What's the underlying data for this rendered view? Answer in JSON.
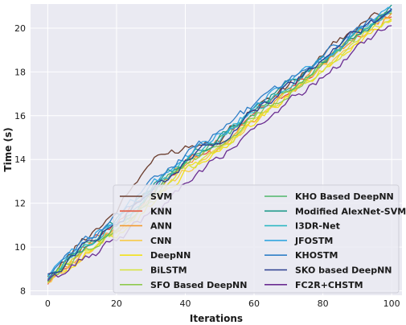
{
  "chart_data": {
    "type": "line",
    "title": "",
    "xlabel": "Iterations",
    "ylabel": "Time (s)",
    "xlim": [
      -5,
      103
    ],
    "ylim": [
      7.8,
      21.1
    ],
    "x_ticks": [
      0,
      20,
      40,
      60,
      80,
      100
    ],
    "y_ticks": [
      8,
      10,
      12,
      14,
      16,
      18,
      20
    ],
    "grid": true,
    "background": "#eaeaf2",
    "legend_placement": "bottom-right",
    "legend_columns": 2,
    "series": [
      {
        "name": "SVM",
        "color": "#6b3d2e",
        "points": [
          [
            0,
            8.5
          ],
          [
            10,
            10.3
          ],
          [
            20,
            11.7
          ],
          [
            30,
            13.9
          ],
          [
            40,
            14.6
          ],
          [
            50,
            15.0
          ],
          [
            60,
            16.4
          ],
          [
            70,
            17.3
          ],
          [
            80,
            18.8
          ],
          [
            90,
            20.0
          ],
          [
            100,
            20.9
          ]
        ]
      },
      {
        "name": "KNN",
        "color": "#e8553a",
        "points": [
          [
            0,
            8.45
          ],
          [
            10,
            9.9
          ],
          [
            20,
            11.0
          ],
          [
            30,
            12.6
          ],
          [
            40,
            13.9
          ],
          [
            50,
            14.8
          ],
          [
            60,
            16.1
          ],
          [
            70,
            17.2
          ],
          [
            80,
            18.4
          ],
          [
            90,
            19.7
          ],
          [
            100,
            20.7
          ]
        ]
      },
      {
        "name": "ANN",
        "color": "#f39c33",
        "points": [
          [
            0,
            8.45
          ],
          [
            10,
            9.7
          ],
          [
            20,
            10.8
          ],
          [
            30,
            12.3
          ],
          [
            40,
            13.7
          ],
          [
            50,
            14.6
          ],
          [
            60,
            15.9
          ],
          [
            70,
            17.0
          ],
          [
            80,
            18.3
          ],
          [
            90,
            19.6
          ],
          [
            100,
            20.6
          ]
        ]
      },
      {
        "name": "CNN",
        "color": "#f7c948",
        "points": [
          [
            0,
            8.4
          ],
          [
            10,
            9.6
          ],
          [
            20,
            10.7
          ],
          [
            30,
            12.1
          ],
          [
            40,
            13.5
          ],
          [
            50,
            14.5
          ],
          [
            60,
            15.8
          ],
          [
            70,
            17.0
          ],
          [
            80,
            18.2
          ],
          [
            90,
            19.5
          ],
          [
            100,
            20.6
          ]
        ]
      },
      {
        "name": "DeepNN",
        "color": "#f2e01b",
        "points": [
          [
            0,
            8.4
          ],
          [
            10,
            9.6
          ],
          [
            20,
            10.6
          ],
          [
            30,
            12.0
          ],
          [
            40,
            13.4
          ],
          [
            50,
            14.4
          ],
          [
            60,
            15.7
          ],
          [
            70,
            16.9
          ],
          [
            80,
            18.1
          ],
          [
            90,
            19.4
          ],
          [
            100,
            20.5
          ]
        ]
      },
      {
        "name": "BiLSTM",
        "color": "#d6e33a",
        "points": [
          [
            0,
            8.45
          ],
          [
            10,
            9.7
          ],
          [
            20,
            10.7
          ],
          [
            30,
            12.1
          ],
          [
            40,
            13.5
          ],
          [
            50,
            14.5
          ],
          [
            60,
            15.8
          ],
          [
            70,
            17.0
          ],
          [
            80,
            18.2
          ],
          [
            90,
            19.5
          ],
          [
            100,
            20.6
          ]
        ]
      },
      {
        "name": "SFO Based DeepNN",
        "color": "#8fc94e",
        "points": [
          [
            0,
            8.5
          ],
          [
            10,
            9.8
          ],
          [
            20,
            10.9
          ],
          [
            30,
            12.3
          ],
          [
            40,
            13.7
          ],
          [
            50,
            14.7
          ],
          [
            60,
            16.0
          ],
          [
            70,
            17.1
          ],
          [
            80,
            18.4
          ],
          [
            90,
            19.6
          ],
          [
            100,
            20.7
          ]
        ]
      },
      {
        "name": "KHO Based DeepNN",
        "color": "#4fb86a",
        "points": [
          [
            0,
            8.5
          ],
          [
            10,
            9.9
          ],
          [
            20,
            11.0
          ],
          [
            30,
            12.4
          ],
          [
            40,
            13.8
          ],
          [
            50,
            14.8
          ],
          [
            60,
            16.1
          ],
          [
            70,
            17.2
          ],
          [
            80,
            18.4
          ],
          [
            90,
            19.7
          ],
          [
            100,
            20.7
          ]
        ]
      },
      {
        "name": "Modified AlexNet-SVM",
        "color": "#1f9a8a",
        "points": [
          [
            0,
            8.55
          ],
          [
            10,
            10.0
          ],
          [
            20,
            11.2
          ],
          [
            30,
            12.7
          ],
          [
            40,
            14.0
          ],
          [
            50,
            15.0
          ],
          [
            60,
            16.3
          ],
          [
            70,
            17.4
          ],
          [
            80,
            18.5
          ],
          [
            90,
            19.8
          ],
          [
            100,
            20.8
          ]
        ]
      },
      {
        "name": "I3DR-Net",
        "color": "#2fb8c4",
        "points": [
          [
            0,
            8.55
          ],
          [
            10,
            10.0
          ],
          [
            20,
            11.1
          ],
          [
            30,
            12.6
          ],
          [
            40,
            13.9
          ],
          [
            50,
            14.9
          ],
          [
            60,
            16.2
          ],
          [
            70,
            17.3
          ],
          [
            80,
            18.5
          ],
          [
            90,
            19.7
          ],
          [
            100,
            20.8
          ]
        ]
      },
      {
        "name": "JFOSTM",
        "color": "#33a6e0",
        "points": [
          [
            0,
            8.6
          ],
          [
            10,
            10.1
          ],
          [
            20,
            11.3
          ],
          [
            30,
            12.8
          ],
          [
            40,
            14.1
          ],
          [
            50,
            15.1
          ],
          [
            60,
            16.4
          ],
          [
            70,
            17.5
          ],
          [
            80,
            18.6
          ],
          [
            90,
            19.8
          ],
          [
            100,
            20.8
          ]
        ]
      },
      {
        "name": "KHOSTM",
        "color": "#2f7fc7",
        "points": [
          [
            0,
            8.6
          ],
          [
            10,
            10.2
          ],
          [
            20,
            11.4
          ],
          [
            30,
            12.9
          ],
          [
            40,
            14.2
          ],
          [
            50,
            15.2
          ],
          [
            60,
            16.5
          ],
          [
            70,
            17.6
          ],
          [
            80,
            18.7
          ],
          [
            90,
            19.9
          ],
          [
            100,
            20.8
          ]
        ]
      },
      {
        "name": "SKO based DeepNN",
        "color": "#2c3f8f",
        "points": [
          [
            0,
            8.6
          ],
          [
            10,
            10.0
          ],
          [
            20,
            11.1
          ],
          [
            30,
            12.5
          ],
          [
            40,
            13.8
          ],
          [
            50,
            14.9
          ],
          [
            60,
            16.2
          ],
          [
            70,
            17.3
          ],
          [
            80,
            18.5
          ],
          [
            90,
            19.8
          ],
          [
            100,
            20.8
          ]
        ]
      },
      {
        "name": "FC2R+CHSTM",
        "color": "#6a2c91",
        "points": [
          [
            0,
            8.35
          ],
          [
            10,
            9.4
          ],
          [
            20,
            10.3
          ],
          [
            30,
            11.6
          ],
          [
            40,
            12.9
          ],
          [
            50,
            14.1
          ],
          [
            60,
            15.3
          ],
          [
            70,
            16.5
          ],
          [
            80,
            17.8
          ],
          [
            90,
            19.1
          ],
          [
            100,
            20.3
          ]
        ]
      }
    ]
  }
}
